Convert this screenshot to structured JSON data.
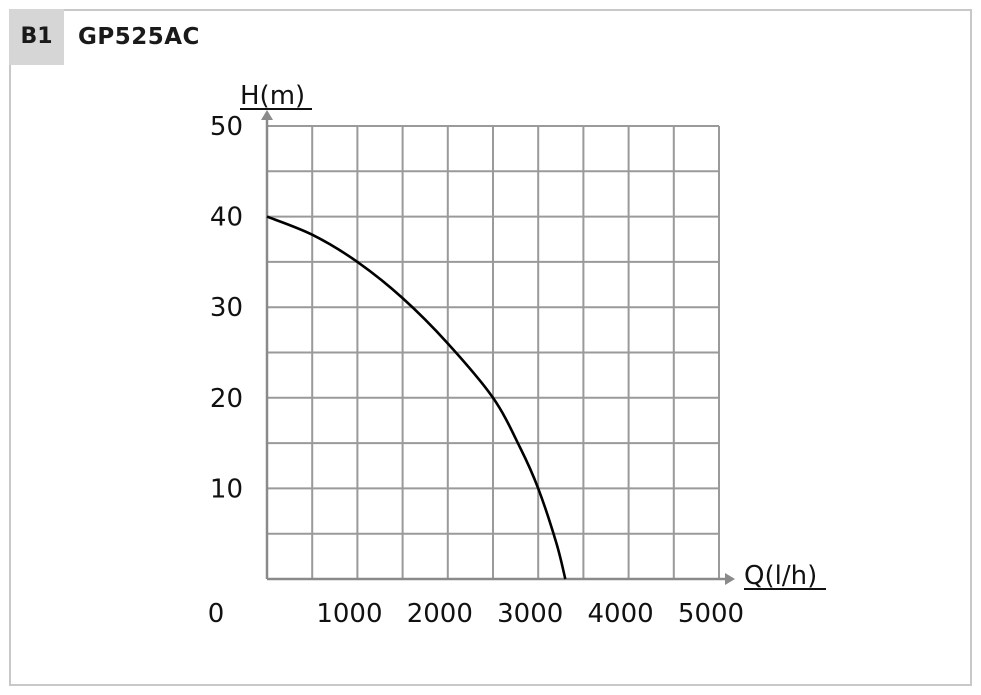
{
  "header": {
    "badge": "B1",
    "model": "GP525AC"
  },
  "colors": {
    "grid": "#9a9a9a",
    "axis": "#8a8a8a",
    "curve": "#000000",
    "badge_bg": "#d6d6d6",
    "frame": "#c8c8c8"
  },
  "chart_data": {
    "type": "line",
    "title": "",
    "xlabel": "Q(l/h)",
    "ylabel": "H(m)",
    "origin_label": "0",
    "xlim": [
      0,
      5000
    ],
    "ylim": [
      0,
      50
    ],
    "x_ticks": [
      1000,
      2000,
      3000,
      4000,
      5000
    ],
    "y_ticks": [
      10,
      20,
      30,
      40,
      50
    ],
    "x_grid_step": 500,
    "y_grid_step": 5,
    "grid": true,
    "series": [
      {
        "x": [
          0,
          500,
          1000,
          1500,
          2000,
          2500,
          2800,
          3000,
          3200,
          3300
        ],
        "y": [
          40,
          38,
          35,
          31,
          26,
          20,
          14.5,
          10,
          4,
          0
        ]
      }
    ]
  }
}
